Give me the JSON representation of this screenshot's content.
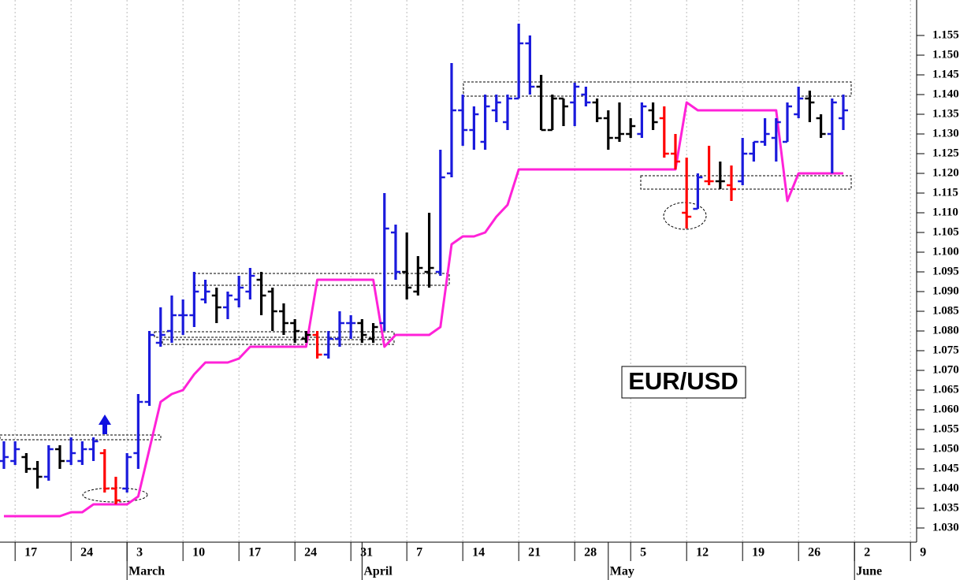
{
  "chart_data": {
    "type": "ohlc",
    "annotation": "EUR/USD",
    "x": [
      0,
      1,
      2,
      3,
      4,
      5,
      6,
      7,
      8,
      9,
      10,
      11,
      12,
      13,
      14,
      15,
      16,
      17,
      18,
      19,
      20,
      21,
      22,
      23,
      24,
      25,
      26,
      27,
      28,
      29,
      30,
      31,
      32,
      33,
      34,
      35,
      36,
      37,
      38,
      39,
      40,
      41,
      42,
      43,
      44,
      45,
      46,
      47,
      48,
      49,
      50,
      51,
      52,
      53,
      54,
      55,
      56,
      57,
      58,
      59,
      60,
      61,
      62,
      63,
      64,
      65,
      66,
      67,
      68,
      69,
      70,
      71,
      72,
      73,
      74,
      75
    ],
    "open": [
      1.047,
      1.047,
      1.048,
      1.045,
      1.043,
      1.05,
      1.047,
      1.047,
      1.05,
      1.049,
      1.04,
      1.04,
      1.049,
      1.062,
      1.077,
      1.08,
      1.084,
      1.084,
      1.088,
      1.089,
      1.086,
      1.088,
      1.09,
      1.093,
      1.09,
      1.085,
      1.082,
      1.078,
      1.079,
      1.074,
      1.078,
      1.082,
      1.082,
      1.078,
      1.082,
      1.105,
      1.095,
      1.09,
      1.095,
      1.095,
      1.12,
      1.136,
      1.131,
      1.128,
      1.136,
      1.133,
      1.139,
      1.153,
      1.142,
      1.131,
      1.139,
      1.138,
      1.14,
      1.138,
      1.134,
      1.129,
      1.13,
      1.13,
      1.136,
      1.134,
      1.125,
      1.11,
      1.111,
      1.118,
      1.118,
      1.117,
      1.118,
      1.125,
      1.128,
      1.129,
      1.128,
      1.135,
      1.139,
      1.134,
      1.13,
      1.134
    ],
    "high": [
      1.052,
      1.052,
      1.049,
      1.047,
      1.051,
      1.051,
      1.053,
      1.052,
      1.053,
      1.05,
      1.043,
      1.049,
      1.064,
      1.08,
      1.086,
      1.089,
      1.088,
      1.095,
      1.093,
      1.091,
      1.09,
      1.094,
      1.096,
      1.095,
      1.091,
      1.087,
      1.083,
      1.08,
      1.08,
      1.08,
      1.085,
      1.084,
      1.083,
      1.082,
      1.115,
      1.107,
      1.105,
      1.099,
      1.11,
      1.126,
      1.148,
      1.14,
      1.137,
      1.14,
      1.14,
      1.14,
      1.158,
      1.155,
      1.145,
      1.14,
      1.139,
      1.143,
      1.142,
      1.139,
      1.136,
      1.138,
      1.134,
      1.138,
      1.138,
      1.137,
      1.13,
      1.124,
      1.12,
      1.127,
      1.123,
      1.122,
      1.129,
      1.128,
      1.134,
      1.134,
      1.138,
      1.142,
      1.141,
      1.135,
      1.139,
      1.14
    ],
    "low": [
      1.045,
      1.046,
      1.044,
      1.04,
      1.042,
      1.045,
      1.046,
      1.046,
      1.047,
      1.039,
      1.036,
      1.039,
      1.045,
      1.061,
      1.076,
      1.077,
      1.079,
      1.081,
      1.087,
      1.082,
      1.083,
      1.086,
      1.088,
      1.084,
      1.08,
      1.079,
      1.077,
      1.077,
      1.073,
      1.073,
      1.076,
      1.078,
      1.077,
      1.077,
      1.08,
      1.093,
      1.088,
      1.089,
      1.091,
      1.094,
      1.119,
      1.127,
      1.126,
      1.126,
      1.133,
      1.131,
      1.139,
      1.14,
      1.131,
      1.131,
      1.132,
      1.132,
      1.137,
      1.133,
      1.126,
      1.128,
      1.129,
      1.129,
      1.131,
      1.124,
      1.121,
      1.106,
      1.111,
      1.117,
      1.116,
      1.113,
      1.117,
      1.123,
      1.127,
      1.123,
      1.128,
      1.134,
      1.133,
      1.129,
      1.12,
      1.131
    ],
    "close": [
      1.048,
      1.05,
      1.045,
      1.043,
      1.05,
      1.047,
      1.049,
      1.05,
      1.052,
      1.04,
      1.037,
      1.048,
      1.062,
      1.079,
      1.079,
      1.084,
      1.084,
      1.09,
      1.09,
      1.086,
      1.089,
      1.091,
      1.094,
      1.089,
      1.085,
      1.082,
      1.08,
      1.079,
      1.074,
      1.078,
      1.082,
      1.082,
      1.079,
      1.081,
      1.106,
      1.095,
      1.091,
      1.096,
      1.096,
      1.119,
      1.136,
      1.131,
      1.135,
      1.137,
      1.138,
      1.139,
      1.153,
      1.142,
      1.131,
      1.139,
      1.137,
      1.142,
      1.138,
      1.134,
      1.129,
      1.13,
      1.132,
      1.137,
      1.133,
      1.125,
      1.123,
      1.109,
      1.119,
      1.118,
      1.118,
      1.116,
      1.125,
      1.128,
      1.13,
      1.133,
      1.137,
      1.139,
      1.138,
      1.13,
      1.138,
      1.136
    ],
    "colors": [
      "#1a1adc",
      "#1a1adc",
      "#000000",
      "#000000",
      "#1a1adc",
      "#000000",
      "#1a1adc",
      "#1a1adc",
      "#1a1adc",
      "#ff0000",
      "#ff0000",
      "#1a1adc",
      "#1a1adc",
      "#1a1adc",
      "#1a1adc",
      "#1a1adc",
      "#1a1adc",
      "#1a1adc",
      "#1a1adc",
      "#000000",
      "#1a1adc",
      "#1a1adc",
      "#1a1adc",
      "#000000",
      "#000000",
      "#000000",
      "#000000",
      "#000000",
      "#ff0000",
      "#1a1adc",
      "#1a1adc",
      "#1a1adc",
      "#000000",
      "#000000",
      "#1a1adc",
      "#1a1adc",
      "#000000",
      "#000000",
      "#000000",
      "#1a1adc",
      "#1a1adc",
      "#1a1adc",
      "#1a1adc",
      "#1a1adc",
      "#1a1adc",
      "#1a1adc",
      "#1a1adc",
      "#1a1adc",
      "#000000",
      "#000000",
      "#000000",
      "#1a1adc",
      "#1a1adc",
      "#000000",
      "#000000",
      "#000000",
      "#000000",
      "#1a1adc",
      "#000000",
      "#ff0000",
      "#ff0000",
      "#ff0000",
      "#1a1adc",
      "#ff0000",
      "#000000",
      "#ff0000",
      "#1a1adc",
      "#1a1adc",
      "#1a1adc",
      "#1a1adc",
      "#1a1adc",
      "#1a1adc",
      "#000000",
      "#000000",
      "#1a1adc",
      "#1a1adc"
    ],
    "stop": {
      "color": "#ff22d8",
      "values": [
        1.033,
        1.033,
        1.033,
        1.033,
        1.033,
        1.033,
        1.034,
        1.034,
        1.036,
        1.036,
        1.036,
        1.036,
        1.038,
        1.05,
        1.062,
        1.064,
        1.065,
        1.069,
        1.072,
        1.072,
        1.072,
        1.073,
        1.076,
        1.076,
        1.076,
        1.076,
        1.076,
        1.076,
        1.093,
        1.093,
        1.093,
        1.093,
        1.093,
        1.093,
        1.076,
        1.079,
        1.079,
        1.079,
        1.079,
        1.081,
        1.102,
        1.104,
        1.104,
        1.105,
        1.109,
        1.112,
        1.121,
        1.121,
        1.121,
        1.121,
        1.121,
        1.121,
        1.121,
        1.121,
        1.121,
        1.121,
        1.121,
        1.121,
        1.121,
        1.121,
        1.121,
        1.138,
        1.136,
        1.136,
        1.136,
        1.136,
        1.136,
        1.136,
        1.136,
        1.136,
        1.113,
        1.12,
        1.12,
        1.12,
        1.12,
        1.12
      ]
    },
    "xlim": [
      -0.35,
      81.55
    ],
    "ylim": [
      1.0264,
      1.164
    ],
    "xticks": [
      {
        "value": 1,
        "label": "17"
      },
      {
        "value": 6,
        "label": "24"
      },
      {
        "value": 11,
        "label": "3"
      },
      {
        "value": 16,
        "label": "10"
      },
      {
        "value": 21,
        "label": "17"
      },
      {
        "value": 26,
        "label": "24"
      },
      {
        "value": 31,
        "label": "31"
      },
      {
        "value": 36,
        "label": "7"
      },
      {
        "value": 41,
        "label": "14"
      },
      {
        "value": 46,
        "label": "21"
      },
      {
        "value": 51,
        "label": "28"
      },
      {
        "value": 56,
        "label": "5"
      },
      {
        "value": 61,
        "label": "12"
      },
      {
        "value": 66,
        "label": "19"
      },
      {
        "value": 71,
        "label": "26"
      },
      {
        "value": 76,
        "label": "2"
      },
      {
        "value": 81,
        "label": "9"
      }
    ],
    "month_ticks": [
      {
        "value": 11,
        "label": "March"
      },
      {
        "value": 32,
        "label": "April"
      },
      {
        "value": 54,
        "label": "May"
      },
      {
        "value": 76,
        "label": "June"
      }
    ],
    "yticks": [
      {
        "value": 1.03,
        "label": "1.030"
      },
      {
        "value": 1.035,
        "label": "1.035"
      },
      {
        "value": 1.04,
        "label": "1.040"
      },
      {
        "value": 1.045,
        "label": "1.045"
      },
      {
        "value": 1.05,
        "label": "1.050"
      },
      {
        "value": 1.055,
        "label": "1.055"
      },
      {
        "value": 1.06,
        "label": "1.060"
      },
      {
        "value": 1.065,
        "label": "1.065"
      },
      {
        "value": 1.07,
        "label": "1.070"
      },
      {
        "value": 1.075,
        "label": "1.075"
      },
      {
        "value": 1.08,
        "label": "1.080"
      },
      {
        "value": 1.085,
        "label": "1.085"
      },
      {
        "value": 1.09,
        "label": "1.090"
      },
      {
        "value": 1.095,
        "label": "1.095"
      },
      {
        "value": 1.1,
        "label": "1.100"
      },
      {
        "value": 1.105,
        "label": "1.105"
      },
      {
        "value": 1.11,
        "label": "1.110"
      },
      {
        "value": 1.115,
        "label": "1.115"
      },
      {
        "value": 1.12,
        "label": "1.120"
      },
      {
        "value": 1.125,
        "label": "1.125"
      },
      {
        "value": 1.13,
        "label": "1.130"
      },
      {
        "value": 1.135,
        "label": "1.135"
      },
      {
        "value": 1.14,
        "label": "1.140"
      },
      {
        "value": 1.145,
        "label": "1.145"
      },
      {
        "value": 1.15,
        "label": "1.150"
      },
      {
        "value": 1.155,
        "label": "1.155"
      }
    ],
    "grid": true
  }
}
